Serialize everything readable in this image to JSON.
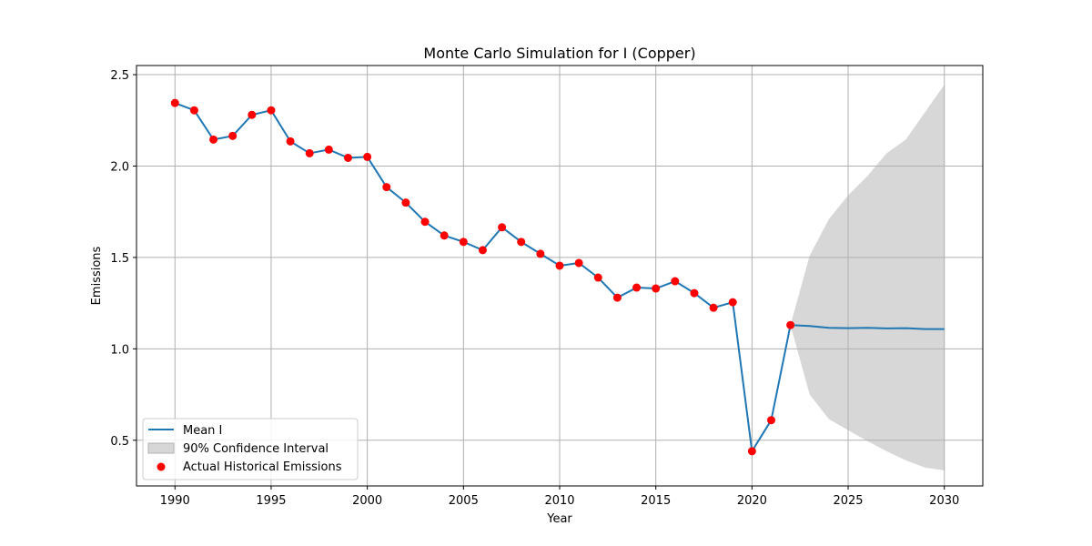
{
  "chart_data": {
    "type": "line",
    "title": "Monte Carlo Simulation for I (Copper)",
    "xlabel": "Year",
    "ylabel": "Emissions",
    "xlim": [
      1988,
      2032
    ],
    "ylim": [
      0.25,
      2.55
    ],
    "xticks": [
      1990,
      1995,
      2000,
      2005,
      2010,
      2015,
      2020,
      2025,
      2030
    ],
    "yticks": [
      0.5,
      1.0,
      1.5,
      2.0,
      2.5
    ],
    "xtick_labels": [
      "1990",
      "1995",
      "2000",
      "2005",
      "2010",
      "2015",
      "2020",
      "2025",
      "2030"
    ],
    "ytick_labels": [
      "0.5",
      "1.0",
      "1.5",
      "2.0",
      "2.5"
    ],
    "grid": true,
    "legend_position": "lower-left",
    "colors": {
      "mean_line": "#1f77b4",
      "actual_points": "#ff0000",
      "confidence_fill": "#b0b0b0"
    },
    "series": [
      {
        "name": "Mean I",
        "type": "line",
        "x": [
          1990,
          1991,
          1992,
          1993,
          1994,
          1995,
          1996,
          1997,
          1998,
          1999,
          2000,
          2001,
          2002,
          2003,
          2004,
          2005,
          2006,
          2007,
          2008,
          2009,
          2010,
          2011,
          2012,
          2013,
          2014,
          2015,
          2016,
          2017,
          2018,
          2019,
          2020,
          2021,
          2022,
          2023,
          2024,
          2025,
          2026,
          2027,
          2028,
          2029,
          2030
        ],
        "y": [
          2.345,
          2.305,
          2.145,
          2.165,
          2.28,
          2.305,
          2.135,
          2.07,
          2.09,
          2.045,
          2.05,
          1.885,
          1.8,
          1.695,
          1.62,
          1.585,
          1.54,
          1.665,
          1.585,
          1.52,
          1.455,
          1.47,
          1.39,
          1.28,
          1.335,
          1.33,
          1.37,
          1.305,
          1.225,
          1.255,
          0.44,
          0.61,
          1.13,
          1.125,
          1.115,
          1.113,
          1.115,
          1.112,
          1.113,
          1.108,
          1.108
        ]
      },
      {
        "name": "90% Confidence Interval",
        "type": "area",
        "x": [
          2022,
          2023,
          2024,
          2025,
          2026,
          2027,
          2028,
          2029,
          2030
        ],
        "lower": [
          1.13,
          0.75,
          0.615,
          0.555,
          0.495,
          0.44,
          0.39,
          0.35,
          0.335
        ],
        "upper": [
          1.13,
          1.51,
          1.71,
          1.84,
          1.945,
          2.07,
          2.145,
          2.295,
          2.445
        ]
      },
      {
        "name": "Actual Historical Emissions",
        "type": "scatter",
        "x": [
          1990,
          1991,
          1992,
          1993,
          1994,
          1995,
          1996,
          1997,
          1998,
          1999,
          2000,
          2001,
          2002,
          2003,
          2004,
          2005,
          2006,
          2007,
          2008,
          2009,
          2010,
          2011,
          2012,
          2013,
          2014,
          2015,
          2016,
          2017,
          2018,
          2019,
          2020,
          2021,
          2022
        ],
        "y": [
          2.345,
          2.305,
          2.145,
          2.165,
          2.28,
          2.305,
          2.135,
          2.07,
          2.09,
          2.045,
          2.05,
          1.885,
          1.8,
          1.695,
          1.62,
          1.585,
          1.54,
          1.665,
          1.585,
          1.52,
          1.455,
          1.47,
          1.39,
          1.28,
          1.335,
          1.33,
          1.37,
          1.305,
          1.225,
          1.255,
          0.44,
          0.61,
          1.13
        ]
      }
    ]
  }
}
